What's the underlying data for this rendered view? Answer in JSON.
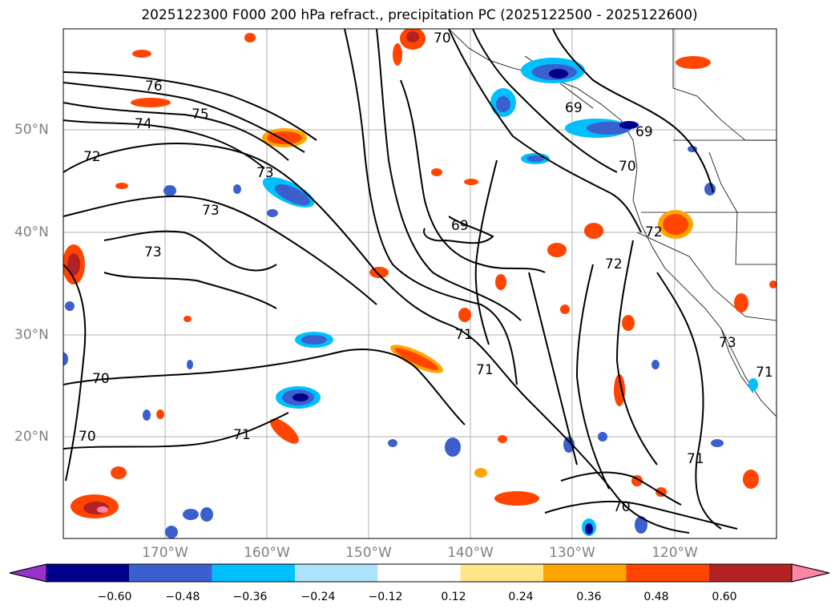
{
  "title": "2025122300 F000 200 hPa refract., precipitation PC (2025122500 - 2025122600)",
  "lat_labels": [
    "50°N",
    "40°N",
    "30°N",
    "20°N"
  ],
  "lon_labels": [
    "170°W",
    "160°W",
    "150°W",
    "140°W",
    "130°W",
    "120°W"
  ],
  "contour_labels": [
    "70",
    "76",
    "75",
    "74",
    "72",
    "73",
    "73",
    "73",
    "69",
    "69",
    "70",
    "72",
    "72",
    "71",
    "71",
    "71",
    "70",
    "70",
    "70",
    "73",
    "71",
    "71",
    "69"
  ],
  "colorbar": {
    "ticks": [
      "−0.60",
      "−0.48",
      "−0.36",
      "−0.24",
      "−0.12",
      "0.12",
      "0.24",
      "0.36",
      "0.48",
      "0.60"
    ],
    "colors": [
      "#9932cc",
      "#00008b",
      "#3b5fcd",
      "#00bfff",
      "#ade4fb",
      "#ffffff",
      "#fde68a",
      "#ffa500",
      "#ff4500",
      "#b22222",
      "#ff85a8"
    ]
  }
}
